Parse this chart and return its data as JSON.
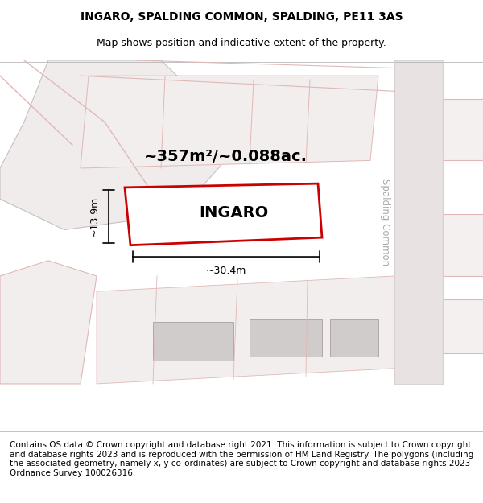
{
  "title_line1": "INGARO, SPALDING COMMON, SPALDING, PE11 3AS",
  "title_line2": "Map shows position and indicative extent of the property.",
  "footer_text": "Contains OS data © Crown copyright and database right 2021. This information is subject to Crown copyright and database rights 2023 and is reproduced with the permission of HM Land Registry. The polygons (including the associated geometry, namely x, y co-ordinates) are subject to Crown copyright and database rights 2023 Ordnance Survey 100026316.",
  "background_color": "#f5f0f0",
  "map_background": "#f8f5f5",
  "road_color": "#e8e0e0",
  "plot_outline_color": "#cc0000",
  "plot_fill_color": "#ffffff",
  "building_fill_color": "#d0cccc",
  "building_edge_color": "#b0a8a8",
  "street_line_color": "#c8c0c0",
  "dim_line_color": "#000000",
  "label_ingaro": "INGARO",
  "label_area": "~357m²/~0.088ac.",
  "label_width": "~30.4m",
  "label_height": "~13.9m",
  "street_name": "Spalding Common",
  "title_fontsize": 10,
  "footer_fontsize": 7.5
}
